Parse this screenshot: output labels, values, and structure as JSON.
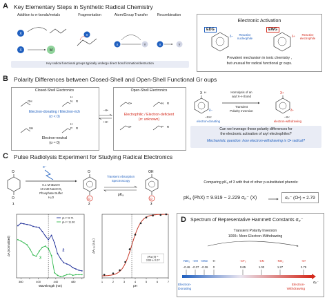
{
  "panel_a": {
    "letter": "A",
    "title": "Key Elementary Steps in Synthetic Radical Chemistry",
    "steps": [
      "Addition to π-bonds/metals",
      "Fragmentation",
      "Atom/Group Transfer",
      "Recombination"
    ],
    "metal": "M",
    "footer": "Key radical functional groups typically undergo direct bond formation/destruction",
    "activation": {
      "title": "Electronic Activation",
      "edg": "EDG",
      "ewg": "EWG",
      "edg_caption": "Reactive nucleophile",
      "ewg_caption": "Reactive electrophile",
      "delta_minus": "δ−",
      "delta_plus": "δ+",
      "summary_line1": "Prevalent mechanism in ionic chemistry ,",
      "summary_line2": "but unusual for radical functional gr oups."
    }
  },
  "panel_b": {
    "letter": "B",
    "title": "Polarity Differences between Closed-Shell and Open-Shell Functional Gr oups",
    "closed_title": "Closed-Shell Electronics",
    "open_title": "Open-Shell Electronics",
    "closed_caption_line1": "Electron-donating / Electron-rich",
    "closed_caption_line2": "(σ < 0)",
    "closed_neutral_line1": "Electron-neutral",
    "closed_neutral_line2": "(σ ≈ 0)",
    "arrow_top": "−H•",
    "arrow_bottom": "+H•",
    "open_caption_line1": "Electrophilic / Electron-deficient",
    "open_caption_line2": "(σ: unknown)",
    "homolysis_line1": "Homolysis of an",
    "homolysis_line2": "aryl X–H bond",
    "transient_line1": "Transient",
    "transient_line2": "Polarity Inversion",
    "xh_label": "–XH:",
    "xh_role": "electron-donating",
    "x_label": "–X•:",
    "x_role": "electron-withdrawing",
    "question_line1": "Can we leverage these polarity differences for",
    "question_line2": "the electronic activation of aryl electrophiles?",
    "mech_question": "Mechanistic question: how electron-withdrawing is O• radical?",
    "oh": "OH",
    "nh": "N",
    "sh": "SH",
    "ph": "P",
    "o_rad": "O•",
    "s_rad": "S•",
    "r": "R",
    "h": "H"
  },
  "panel_c": {
    "letter": "C",
    "title": "Pulse Radiolysis Experiment for Studying Radical Electronics",
    "electron": "e⁻",
    "conditions": [
      "0.1 M tBuOH",
      "10 mM NaHCO₂",
      "Phosphate Buffer",
      "H₂O"
    ],
    "tas_line1": "Transient Absorption",
    "tas_line2": "Spectroscopy",
    "pka": "pKₐ",
    "compound_labels": [
      "1",
      "2",
      "3"
    ],
    "compare_text": "Comparing pKₐ of 3 with that of other p-substituted phenols:",
    "equation": "pKₐ (PhX) = 9.919 − 2.229 σₚ⁻ (X)",
    "result": "σₚ⁻ (O•) = 2.79",
    "spectrum_chart": {
      "type": "line",
      "xlabel": "Wavelength (nm)",
      "ylabel": "ΔA (normalized)",
      "x_ticks": [
        360,
        380,
        400,
        420,
        440,
        460,
        480,
        500
      ],
      "xlim": [
        350,
        505
      ],
      "ylim": [
        0,
        1
      ],
      "series": [
        {
          "name": "pH = 6.71",
          "color": "#1f2f99",
          "label": "2",
          "x": [
            353,
            360,
            367,
            374,
            381,
            388,
            395,
            402,
            409,
            416,
            423,
            430,
            437,
            444,
            451,
            458,
            465,
            472,
            479,
            486,
            493,
            500
          ],
          "y": [
            0.82,
            0.86,
            0.85,
            0.84,
            0.83,
            0.81,
            0.8,
            0.79,
            0.73,
            0.66,
            0.6,
            0.67,
            0.55,
            0.38,
            0.3,
            0.24,
            0.22,
            0.2,
            0.16,
            0.14,
            0.12,
            0.11
          ]
        },
        {
          "name": "pH = 11.96",
          "color": "#2fb84c",
          "label": "3",
          "x": [
            353,
            360,
            367,
            374,
            381,
            388,
            395,
            402,
            409,
            416,
            423,
            430,
            437,
            444,
            451,
            458,
            465,
            472,
            479,
            486,
            493,
            500
          ],
          "y": [
            0.6,
            0.58,
            0.55,
            0.52,
            0.45,
            0.36,
            0.34,
            0.42,
            0.48,
            0.5,
            0.46,
            0.35,
            0.08,
            0.04,
            0.02,
            0.03,
            0.05,
            0.06,
            0.04,
            0.05,
            0.05,
            0.05
          ]
        }
      ],
      "marker_x": 423,
      "legend": [
        "pH = 6.71",
        "pH = 11.96"
      ]
    },
    "titration_chart": {
      "type": "scatter",
      "xlabel": "pH",
      "ylabel": "ΔA₄₂₀ (a.u.)",
      "x_ticks": [
        1,
        2,
        3,
        4,
        5,
        6,
        7
      ],
      "xlim": [
        1,
        7
      ],
      "ylim": [
        0,
        1
      ],
      "points_x": [
        1.2,
        2.0,
        2.6,
        3.1,
        3.5,
        4.0,
        4.5,
        5.0,
        5.6,
        6.3,
        6.8
      ],
      "points_y": [
        0.05,
        0.07,
        0.12,
        0.25,
        0.45,
        0.68,
        0.86,
        0.95,
        0.98,
        0.99,
        1.0
      ],
      "pka_value": 3.69,
      "pka_text_line1": "pKₐ (3) =",
      "pka_text_line2": "3.69 ± 0.07",
      "fit_color": "#c83a2a"
    }
  },
  "panel_d": {
    "letter": "D",
    "title": "Spectrum of Representative Hammett Constants σₚ⁻",
    "transient_line1": "Transient Polarity Inversion",
    "transient_line2": "1000+ More Electron-Withdrawing",
    "groups": [
      "-NEt₂",
      "-OH",
      "-OMe",
      "-H",
      "-CF₃",
      "-CN",
      "-NO₂",
      "-O•"
    ],
    "values": [
      "−0.46",
      "−0.37",
      "−0.26",
      "0",
      "0.65",
      "1.00",
      "1.27",
      "2.79"
    ],
    "numeric_values": [
      -0.46,
      -0.37,
      -0.26,
      0,
      0.65,
      1.0,
      1.27,
      2.79
    ],
    "axis_label": "σₚ⁻",
    "left_label_line1": "Electron-",
    "left_label_line2": "Donating",
    "right_label_line1": "Electron-",
    "right_label_line2": "Withdrawing",
    "colors": {
      "blue": "#1f5fbf",
      "red": "#d42a1c"
    }
  }
}
